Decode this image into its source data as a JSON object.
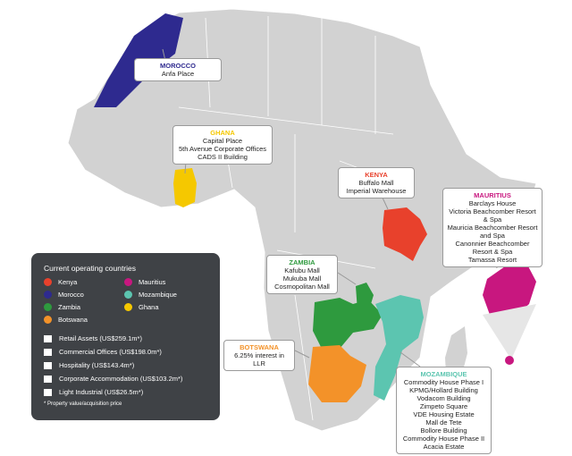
{
  "legend": {
    "title": "Current operating countries",
    "countries": [
      {
        "name": "Kenya",
        "color": "#e8412c"
      },
      {
        "name": "Mauritius",
        "color": "#c8177f"
      },
      {
        "name": "Morocco",
        "color": "#2e2a8f"
      },
      {
        "name": "Mozambique",
        "color": "#5cc5b0"
      },
      {
        "name": "Zambia",
        "color": "#2e9a3e"
      },
      {
        "name": "Ghana",
        "color": "#f5c800"
      },
      {
        "name": "Botswana",
        "color": "#f39229"
      }
    ],
    "sectors": [
      "Retail Assets (US$259.1m*)",
      "Commercial Offices (US$198.0m*)",
      "Hospitality (US$143.4m*)",
      "Corporate Accommodation (US$103.2m*)",
      "Light Industrial (US$26.5m*)"
    ],
    "note": "* Property value/acquisition price"
  },
  "callouts": [
    {
      "title": "MOROCCO",
      "color": "#2e2a8f",
      "items": [
        "Anfa Place"
      ]
    },
    {
      "title": "GHANA",
      "color": "#f5c800",
      "items": [
        "Capital Place",
        "5th Avenue Corporate Offices",
        "CADS II Building"
      ]
    },
    {
      "title": "KENYA",
      "color": "#e8412c",
      "items": [
        "Buffalo Mall",
        "Imperial Warehouse"
      ]
    },
    {
      "title": "MAURITIUS",
      "color": "#c8177f",
      "items": [
        "Barclays House",
        "Victoria Beachcomber Resort & Spa",
        "Mauricia Beachcomber Resort and Spa",
        "Canonnier Beachcomber Resort & Spa",
        "Tamassa Resort"
      ]
    },
    {
      "title": "ZAMBIA",
      "color": "#2e9a3e",
      "items": [
        "Kafubu Mall",
        "Mukuba Mall",
        "Cosmopolitan Mall"
      ]
    },
    {
      "title": "BOTSWANA",
      "color": "#f39229",
      "items": [
        "6.25% interest in LLR"
      ]
    },
    {
      "title": "MOZAMBIQUE",
      "color": "#5cc5b0",
      "items": [
        "Commodity House Phase I",
        "KPMG/Hollard Building",
        "Vodacom Building",
        "Zimpeto Square",
        "VDE Housing Estate",
        "Mall de Tete",
        "Bollore Building",
        "Commodity House Phase II",
        "Acacia Estate"
      ]
    }
  ]
}
